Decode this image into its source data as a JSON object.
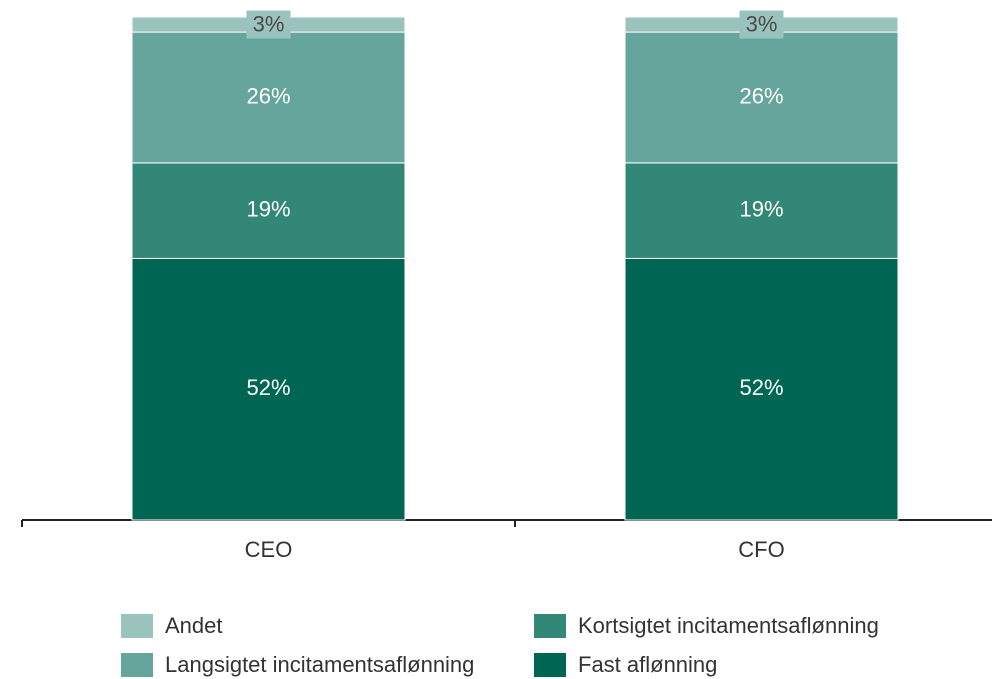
{
  "chart_data": {
    "type": "stacked-bar",
    "categories": [
      "CEO",
      "CFO"
    ],
    "series": [
      {
        "name": "Fast aflønning",
        "color": "#006654",
        "values": [
          52,
          52
        ],
        "value_labels": [
          "52%",
          "52%"
        ]
      },
      {
        "name": "Kortsigtet incitamentsaflønning",
        "color": "#338777",
        "values": [
          19,
          19
        ],
        "value_labels": [
          "19%",
          "19%"
        ]
      },
      {
        "name": "Langsigtet incitamentsaflønning",
        "color": "#66a59b",
        "values": [
          26,
          26
        ],
        "value_labels": [
          "26%",
          "26%"
        ]
      },
      {
        "name": "Andet",
        "color": "#99c3bc",
        "values": [
          3,
          3
        ],
        "value_labels": [
          "3%",
          "3%"
        ]
      }
    ],
    "ylim": [
      0,
      100
    ]
  }
}
